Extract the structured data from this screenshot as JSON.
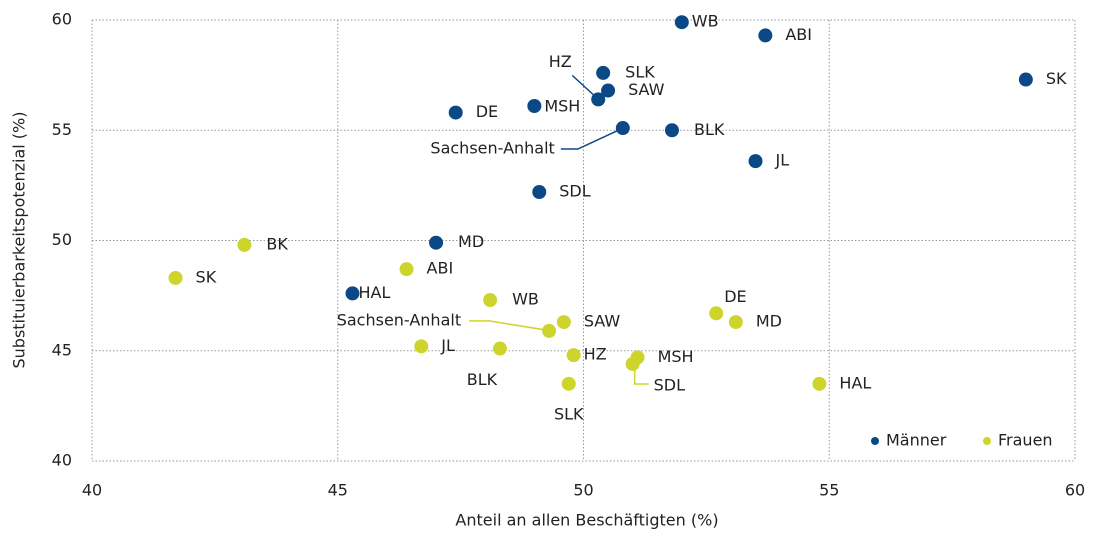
{
  "chart_data": {
    "type": "scatter",
    "x_label": "Anteil an allen Beschäftigten (%)",
    "y_label": "Substituierbarkeitspotenzial (%)",
    "xlim": [
      40,
      60
    ],
    "xticks": [
      40,
      45,
      50,
      55,
      60
    ],
    "ylim": [
      40,
      60
    ],
    "yticks": [
      40,
      45,
      50,
      55,
      60
    ],
    "grid": true,
    "legend": "lower right",
    "series": [
      {
        "name": "Männer",
        "color": "#0b4886",
        "labels": [
          "WB",
          "ABI",
          "SK",
          "SLK",
          "SAW",
          "HZ",
          "MSH",
          "DE",
          "Sachsen-Anhalt",
          "BLK",
          "JL",
          "SDL",
          "MD",
          "HAL"
        ],
        "x": [
          52.0,
          53.7,
          59.0,
          50.4,
          50.5,
          50.3,
          49.0,
          47.4,
          50.8,
          51.8,
          53.5,
          49.1,
          47.0,
          45.3
        ],
        "y": [
          59.9,
          59.3,
          57.3,
          57.6,
          56.8,
          56.4,
          56.1,
          55.8,
          55.1,
          55.0,
          53.6,
          52.2,
          49.9,
          47.6
        ]
      },
      {
        "name": "Frauen",
        "color": "#cdd52c",
        "labels": [
          "BK",
          "SK",
          "ABI",
          "WB",
          "Sachsen-Anhalt",
          "SAW",
          "DE",
          "MD",
          "JL",
          "BLK",
          "HZ",
          "MSH",
          "SDL",
          "SLK",
          "HAL"
        ],
        "x": [
          43.1,
          41.7,
          46.4,
          48.1,
          49.3,
          49.6,
          52.7,
          53.1,
          46.7,
          48.3,
          49.8,
          51.1,
          51.0,
          49.7,
          54.8
        ],
        "y": [
          49.8,
          48.3,
          48.7,
          47.3,
          45.9,
          46.3,
          46.7,
          46.3,
          45.2,
          45.1,
          44.8,
          44.7,
          44.4,
          43.5,
          43.5
        ]
      }
    ]
  }
}
